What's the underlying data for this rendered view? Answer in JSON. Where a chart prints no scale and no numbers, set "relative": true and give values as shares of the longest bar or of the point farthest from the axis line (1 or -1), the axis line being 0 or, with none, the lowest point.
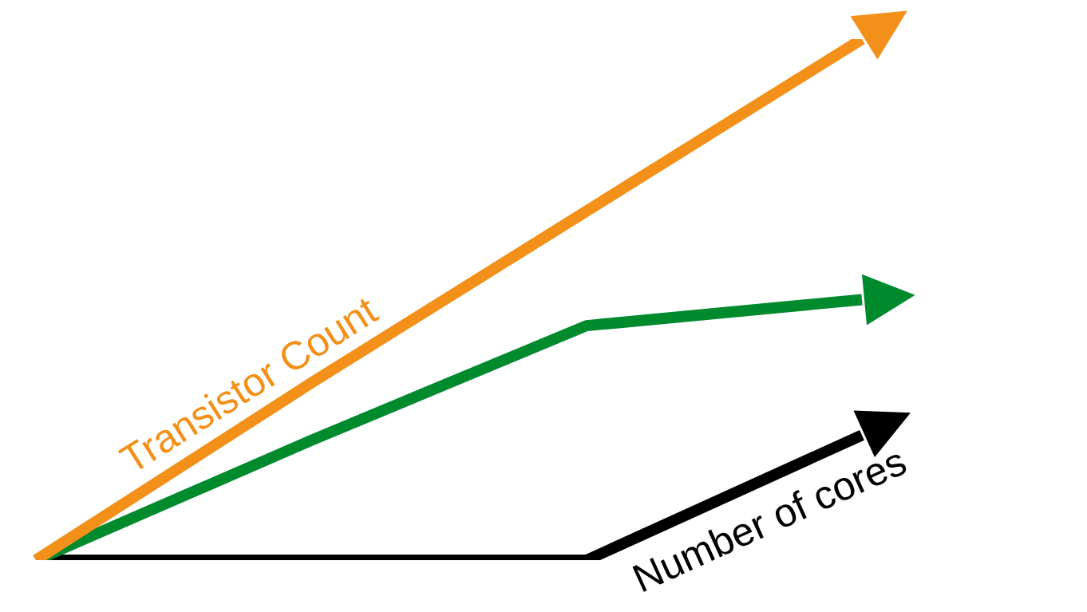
{
  "chart_data": {
    "type": "line",
    "relative": true,
    "legend": false,
    "marker": "none",
    "line_style": "solid",
    "categories": [
      null,
      null,
      null,
      null
    ],
    "series": [
      {
        "name": "Transistor Count",
        "color": "#f39019",
        "values": [
          0,
          0.34,
          0.67,
          1
        ]
      },
      {
        "color": "#008a2e",
        "values": [
          0,
          0.23,
          0.45,
          0.5
        ]
      },
      {
        "name": "Number of cores",
        "color": "#000000",
        "values": [
          0,
          0,
          0,
          0.24
        ]
      }
    ]
  }
}
